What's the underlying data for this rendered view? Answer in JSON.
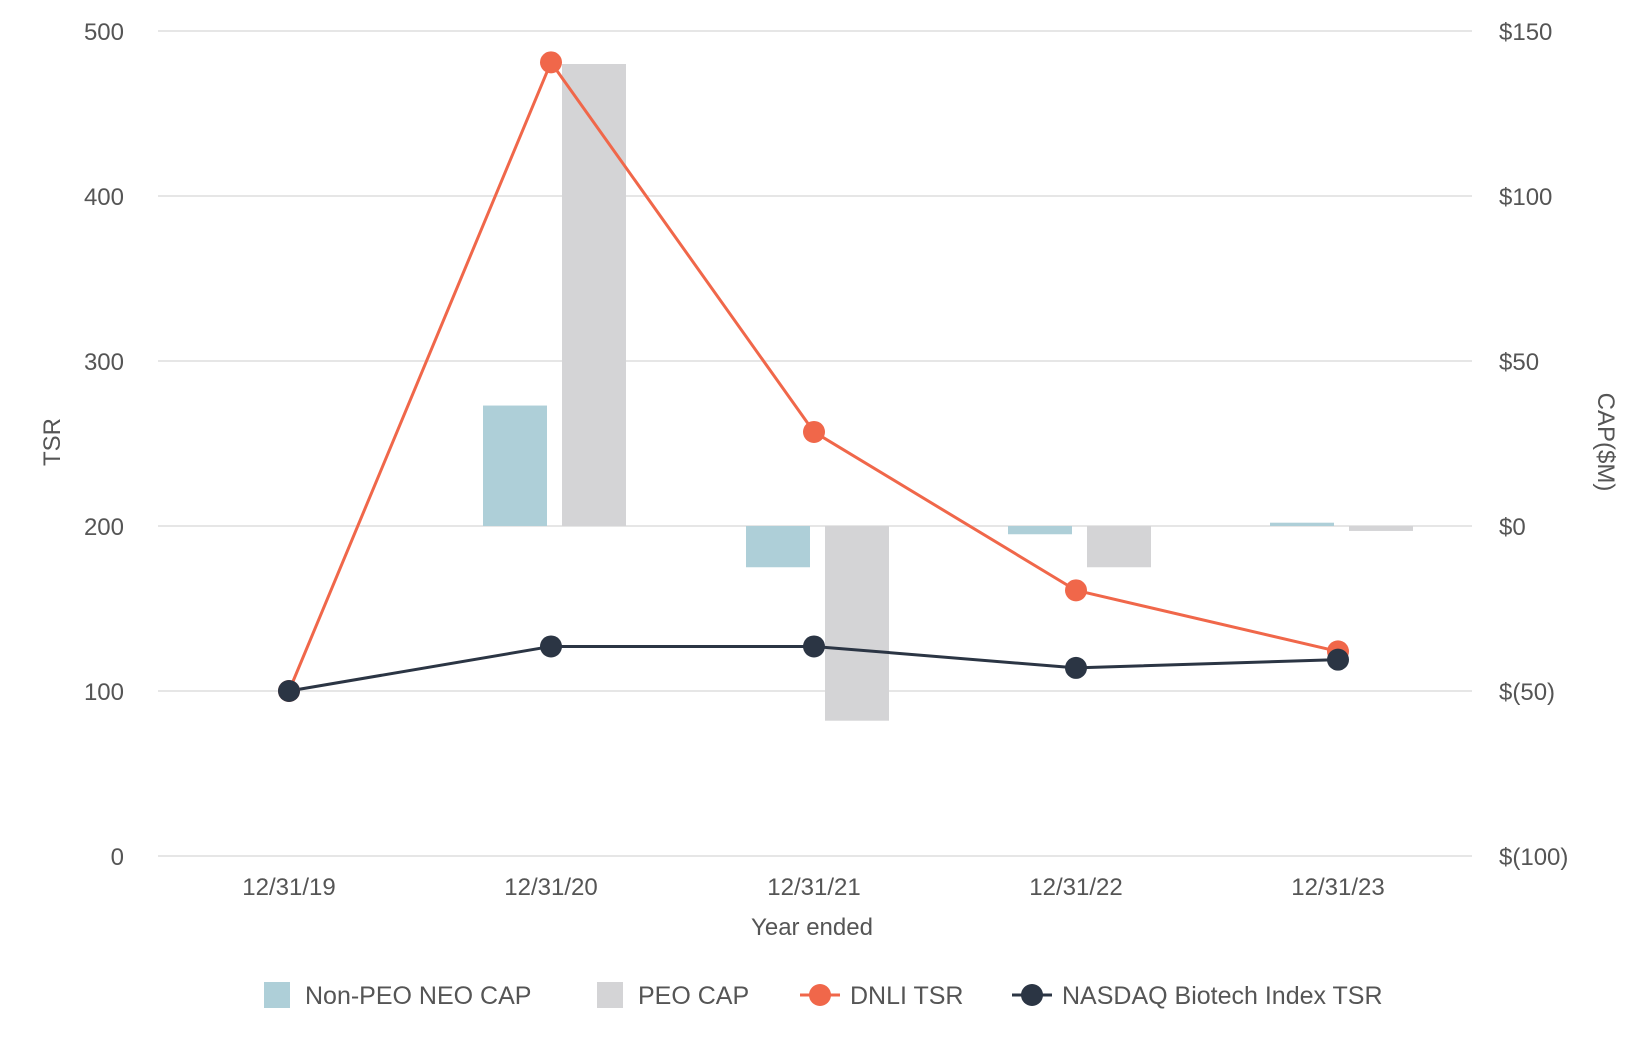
{
  "chart_data": {
    "type": "bar+line",
    "title": "",
    "categories": [
      "12/31/19",
      "12/31/20",
      "12/31/21",
      "12/31/22",
      "12/31/23"
    ],
    "xlabel": "Year ended",
    "ylabel_left": "TSR",
    "ylabel_right": "CAP($M)",
    "ylim_left": [
      0,
      500
    ],
    "ylim_right": [
      -100,
      150
    ],
    "left_ticks": [
      0,
      100,
      200,
      300,
      400,
      500
    ],
    "left_tick_labels": [
      "0",
      "100",
      "200",
      "300",
      "400",
      "500"
    ],
    "right_ticks": [
      -100,
      -50,
      0,
      50,
      100,
      150
    ],
    "right_tick_labels": [
      "$(100)",
      "$(50)",
      "$0",
      "$50",
      "$100",
      "$150"
    ],
    "grid": true,
    "legend_position": "bottom",
    "bar_series": [
      {
        "name": "Non-PEO NEO CAP",
        "axis": "right",
        "color": "#aecfd8",
        "values": [
          null,
          36.5,
          -12.5,
          -2.5,
          1
        ]
      },
      {
        "name": "PEO CAP",
        "axis": "right",
        "color": "#d4d4d6",
        "values": [
          null,
          140,
          -59,
          -12.5,
          -1.5
        ]
      }
    ],
    "line_series": [
      {
        "name": "DNLI TSR",
        "axis": "left",
        "color": "#f0674a",
        "values": [
          100,
          481,
          257,
          161,
          124
        ]
      },
      {
        "name": "NASDAQ Biotech Index TSR",
        "axis": "left",
        "color": "#2b3544",
        "values": [
          100,
          127,
          127,
          114,
          119
        ]
      }
    ],
    "colors": {
      "grid": "#e6e6e6",
      "text": "#555555"
    }
  }
}
